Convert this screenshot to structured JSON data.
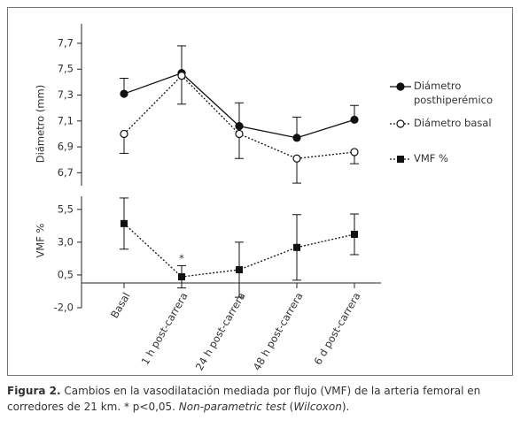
{
  "chart_data": [
    {
      "type": "line",
      "ylabel": "Diámetro (mm)",
      "ylim": [
        6.6,
        7.85
      ],
      "yticks": [
        {
          "value": 6.7,
          "label": "6,7"
        },
        {
          "value": 6.9,
          "label": "6,9"
        },
        {
          "value": 7.1,
          "label": "7,1"
        },
        {
          "value": 7.3,
          "label": "7,3"
        },
        {
          "value": 7.5,
          "label": "7,5"
        },
        {
          "value": 7.7,
          "label": "7,7"
        }
      ],
      "series": [
        {
          "name": "Diámetro posthiperémico",
          "color": "#111111",
          "marker": "filled-circle",
          "dash": "solid",
          "error_side": "up",
          "values": [
            7.31,
            7.47,
            7.06,
            6.97,
            7.11
          ],
          "errors": [
            0.12,
            0.21,
            0.18,
            0.16,
            0.11
          ]
        },
        {
          "name": "Diámetro basal",
          "color": "#111111",
          "marker": "open-circle",
          "dash": "dotted",
          "error_side": "down",
          "values": [
            7.0,
            7.45,
            7.0,
            6.81,
            6.86
          ],
          "errors": [
            0.15,
            0.22,
            0.19,
            0.19,
            0.09
          ]
        }
      ]
    },
    {
      "type": "line",
      "ylabel": "VMF %",
      "categories": [
        "Basal",
        "1 h post-carrera",
        "24 h post-carrera",
        "48 h post-carrera",
        "6 d post-carrera"
      ],
      "ylim": [
        -2,
        6.5
      ],
      "yticks": [
        {
          "value": -2,
          "label": "-2,0"
        },
        {
          "value": 0.5,
          "label": "0,5"
        },
        {
          "value": 3,
          "label": "3,0"
        },
        {
          "value": 5.5,
          "label": "5,5"
        }
      ],
      "annotation": {
        "text": "*",
        "category": 1
      },
      "series": [
        {
          "name": "VMF %",
          "color": "#111111",
          "marker": "filled-square",
          "dash": "dotted",
          "error_side": "both",
          "values": [
            4.42,
            0.36,
            0.9,
            2.6,
            3.6
          ],
          "errors": [
            1.95,
            0.85,
            2.1,
            2.5,
            1.55
          ]
        }
      ]
    }
  ],
  "caption": [
    {
      "text": "Figura 2.",
      "style": "bold"
    },
    {
      "text": " Cambios en la vasodilatación mediada por flujo (VMF) de la arteria femoral en corredores de 21 km. * p<0,05. ",
      "style": "normal"
    },
    {
      "text": "Non-parametric test",
      "style": "italic"
    },
    {
      "text": " (",
      "style": "normal"
    },
    {
      "text": "Wilcoxon",
      "style": "italic"
    },
    {
      "text": ").",
      "style": "normal"
    }
  ]
}
